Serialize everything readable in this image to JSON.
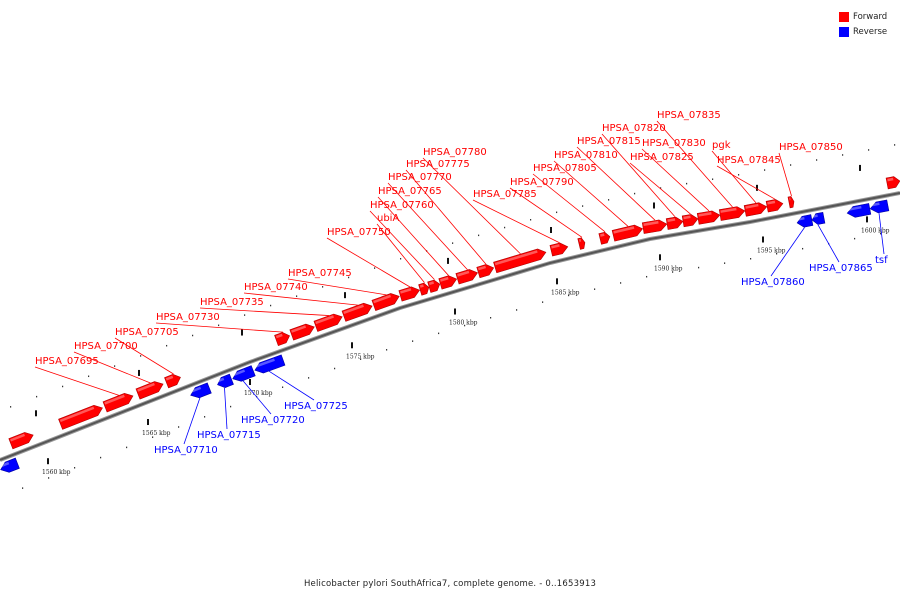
{
  "legend": [
    {
      "label": "Forward",
      "color": "#ff0000"
    },
    {
      "label": "Reverse",
      "color": "#0000ff"
    }
  ],
  "colors": {
    "forward": "#ff0000",
    "reverse": "#0000ff",
    "backbone": "#555555"
  },
  "ticks": [
    "1560 kbp",
    "1565 kbp",
    "1570 kbp",
    "1575 kbp",
    "1580 kbp",
    "1585 kbp",
    "1590 kbp",
    "1595 kbp",
    "1600 kbp"
  ],
  "forward_labels": [
    "HPSA_07695",
    "HPSA_07700",
    "HPSA_07705",
    "HPSA_07730",
    "HPSA_07735",
    "HPSA_07740",
    "HPSA_07745",
    "HPSA_07750",
    "ubiA",
    "HPSA_07760",
    "HPSA_07765",
    "HPSA_07770",
    "HPSA_07775",
    "HPSA_07780",
    "HPSA_07785",
    "HPSA_07790",
    "HPSA_07805",
    "HPSA_07810",
    "HPSA_07815",
    "HPSA_07820",
    "HPSA_07825",
    "HPSA_07830",
    "HPSA_07835",
    "pgk",
    "HPSA_07845",
    "HPSA_07850"
  ],
  "reverse_labels": [
    "HPSA_07710",
    "HPSA_07715",
    "HPSA_07720",
    "HPSA_07725",
    "HPSA_07860",
    "HPSA_07865",
    "tsf"
  ],
  "caption": "Helicobacter pylori SouthAfrica7, complete genome. - 0..1653913"
}
